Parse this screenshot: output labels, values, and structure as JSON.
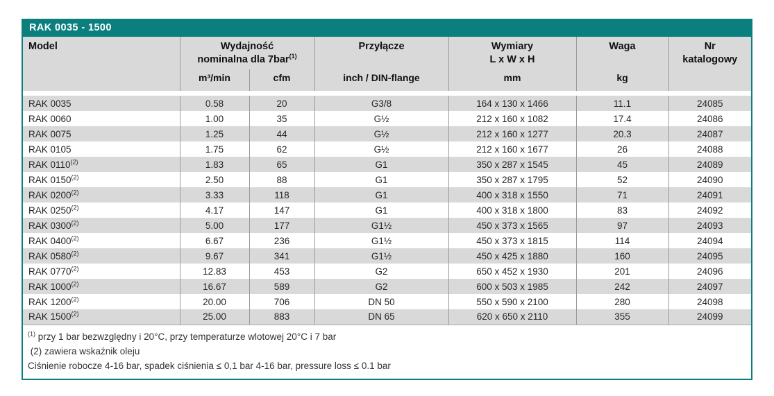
{
  "table": {
    "title": "RAK 0035 - 1500",
    "header": {
      "model": "Model",
      "capacity_line1": "Wydajność",
      "capacity_line2": "nominalna dla 7bar",
      "capacity_sup": "(1)",
      "unit_m3min": "m³/min",
      "unit_cfm": "cfm",
      "connection": "Przyłącze",
      "connection_unit": "inch / DIN-flange",
      "dimensions_line1": "Wymiary",
      "dimensions_line2": "L x W x H",
      "dimensions_unit": "mm",
      "weight": "Waga",
      "weight_unit": "kg",
      "catalog_line1": "Nr",
      "catalog_line2": "katalogowy"
    },
    "rows": [
      {
        "model": "RAK 0035",
        "sup": "",
        "m3min": "0.58",
        "cfm": "20",
        "connection": "G3/8",
        "dimensions": "164 x 130 x 1466",
        "weight": "11.1",
        "catalog": "24085"
      },
      {
        "model": "RAK 0060",
        "sup": "",
        "m3min": "1.00",
        "cfm": "35",
        "connection": "G½",
        "dimensions": "212 x 160 x 1082",
        "weight": "17.4",
        "catalog": "24086"
      },
      {
        "model": "RAK 0075",
        "sup": "",
        "m3min": "1.25",
        "cfm": "44",
        "connection": "G½",
        "dimensions": "212 x 160 x 1277",
        "weight": "20.3",
        "catalog": "24087"
      },
      {
        "model": "RAK 0105",
        "sup": "",
        "m3min": "1.75",
        "cfm": "62",
        "connection": "G½",
        "dimensions": "212 x 160 x 1677",
        "weight": "26",
        "catalog": "24088"
      },
      {
        "model": "RAK 0110",
        "sup": "(2)",
        "m3min": "1.83",
        "cfm": "65",
        "connection": "G1",
        "dimensions": "350 x 287 x 1545",
        "weight": "45",
        "catalog": "24089"
      },
      {
        "model": "RAK 0150",
        "sup": "(2)",
        "m3min": "2.50",
        "cfm": "88",
        "connection": "G1",
        "dimensions": "350 x 287 x 1795",
        "weight": "52",
        "catalog": "24090"
      },
      {
        "model": "RAK 0200",
        "sup": "(2)",
        "m3min": "3.33",
        "cfm": "118",
        "connection": "G1",
        "dimensions": "400 x 318 x 1550",
        "weight": "71",
        "catalog": "24091"
      },
      {
        "model": "RAK 0250",
        "sup": "(2)",
        "m3min": "4.17",
        "cfm": "147",
        "connection": "G1",
        "dimensions": "400 x 318 x 1800",
        "weight": "83",
        "catalog": "24092"
      },
      {
        "model": "RAK 0300",
        "sup": "(2)",
        "m3min": "5.00",
        "cfm": "177",
        "connection": "G1½",
        "dimensions": "450 x 373 x 1565",
        "weight": "97",
        "catalog": "24093"
      },
      {
        "model": "RAK 0400",
        "sup": "(2)",
        "m3min": "6.67",
        "cfm": "236",
        "connection": "G1½",
        "dimensions": "450 x 373 x 1815",
        "weight": "114",
        "catalog": "24094"
      },
      {
        "model": "RAK 0580",
        "sup": "(2)",
        "m3min": "9.67",
        "cfm": "341",
        "connection": "G1½",
        "dimensions": "450 x 425 x 1880",
        "weight": "160",
        "catalog": "24095"
      },
      {
        "model": "RAK 0770",
        "sup": "(2)",
        "m3min": "12.83",
        "cfm": "453",
        "connection": "G2",
        "dimensions": "650 x 452 x 1930",
        "weight": "201",
        "catalog": "24096"
      },
      {
        "model": "RAK 1000",
        "sup": "(2)",
        "m3min": "16.67",
        "cfm": "589",
        "connection": "G2",
        "dimensions": "600 x 503 x 1985",
        "weight": "242",
        "catalog": "24097"
      },
      {
        "model": "RAK 1200",
        "sup": "(2)",
        "m3min": "20.00",
        "cfm": "706",
        "connection": "DN 50",
        "dimensions": "550 x 590 x 2100",
        "weight": "280",
        "catalog": "24098"
      },
      {
        "model": "RAK 1500",
        "sup": "(2)",
        "m3min": "25.00",
        "cfm": "883",
        "connection": "DN 65",
        "dimensions": "620 x 650 x 2110",
        "weight": "355",
        "catalog": "24099"
      }
    ],
    "footnotes": [
      {
        "sup": "(1)",
        "text": " przy 1 bar bezwzględny i 20°C, przy temperaturze wlotowej 20°C i 7 bar"
      },
      {
        "sup": "",
        "text": " (2) zawiera wskaźnik oleju"
      },
      {
        "sup": "",
        "text": "Ciśnienie robocze 4-16 bar, spadek ciśnienia ≤ 0,1 bar 4-16 bar, pressure loss ≤ 0.1 bar"
      }
    ]
  },
  "colors": {
    "accent_teal": "#0b7e7e",
    "header_gray": "#d9d9d9",
    "row_alt_gray": "#d9d9d9",
    "divider_gray": "#9a9a9a"
  }
}
